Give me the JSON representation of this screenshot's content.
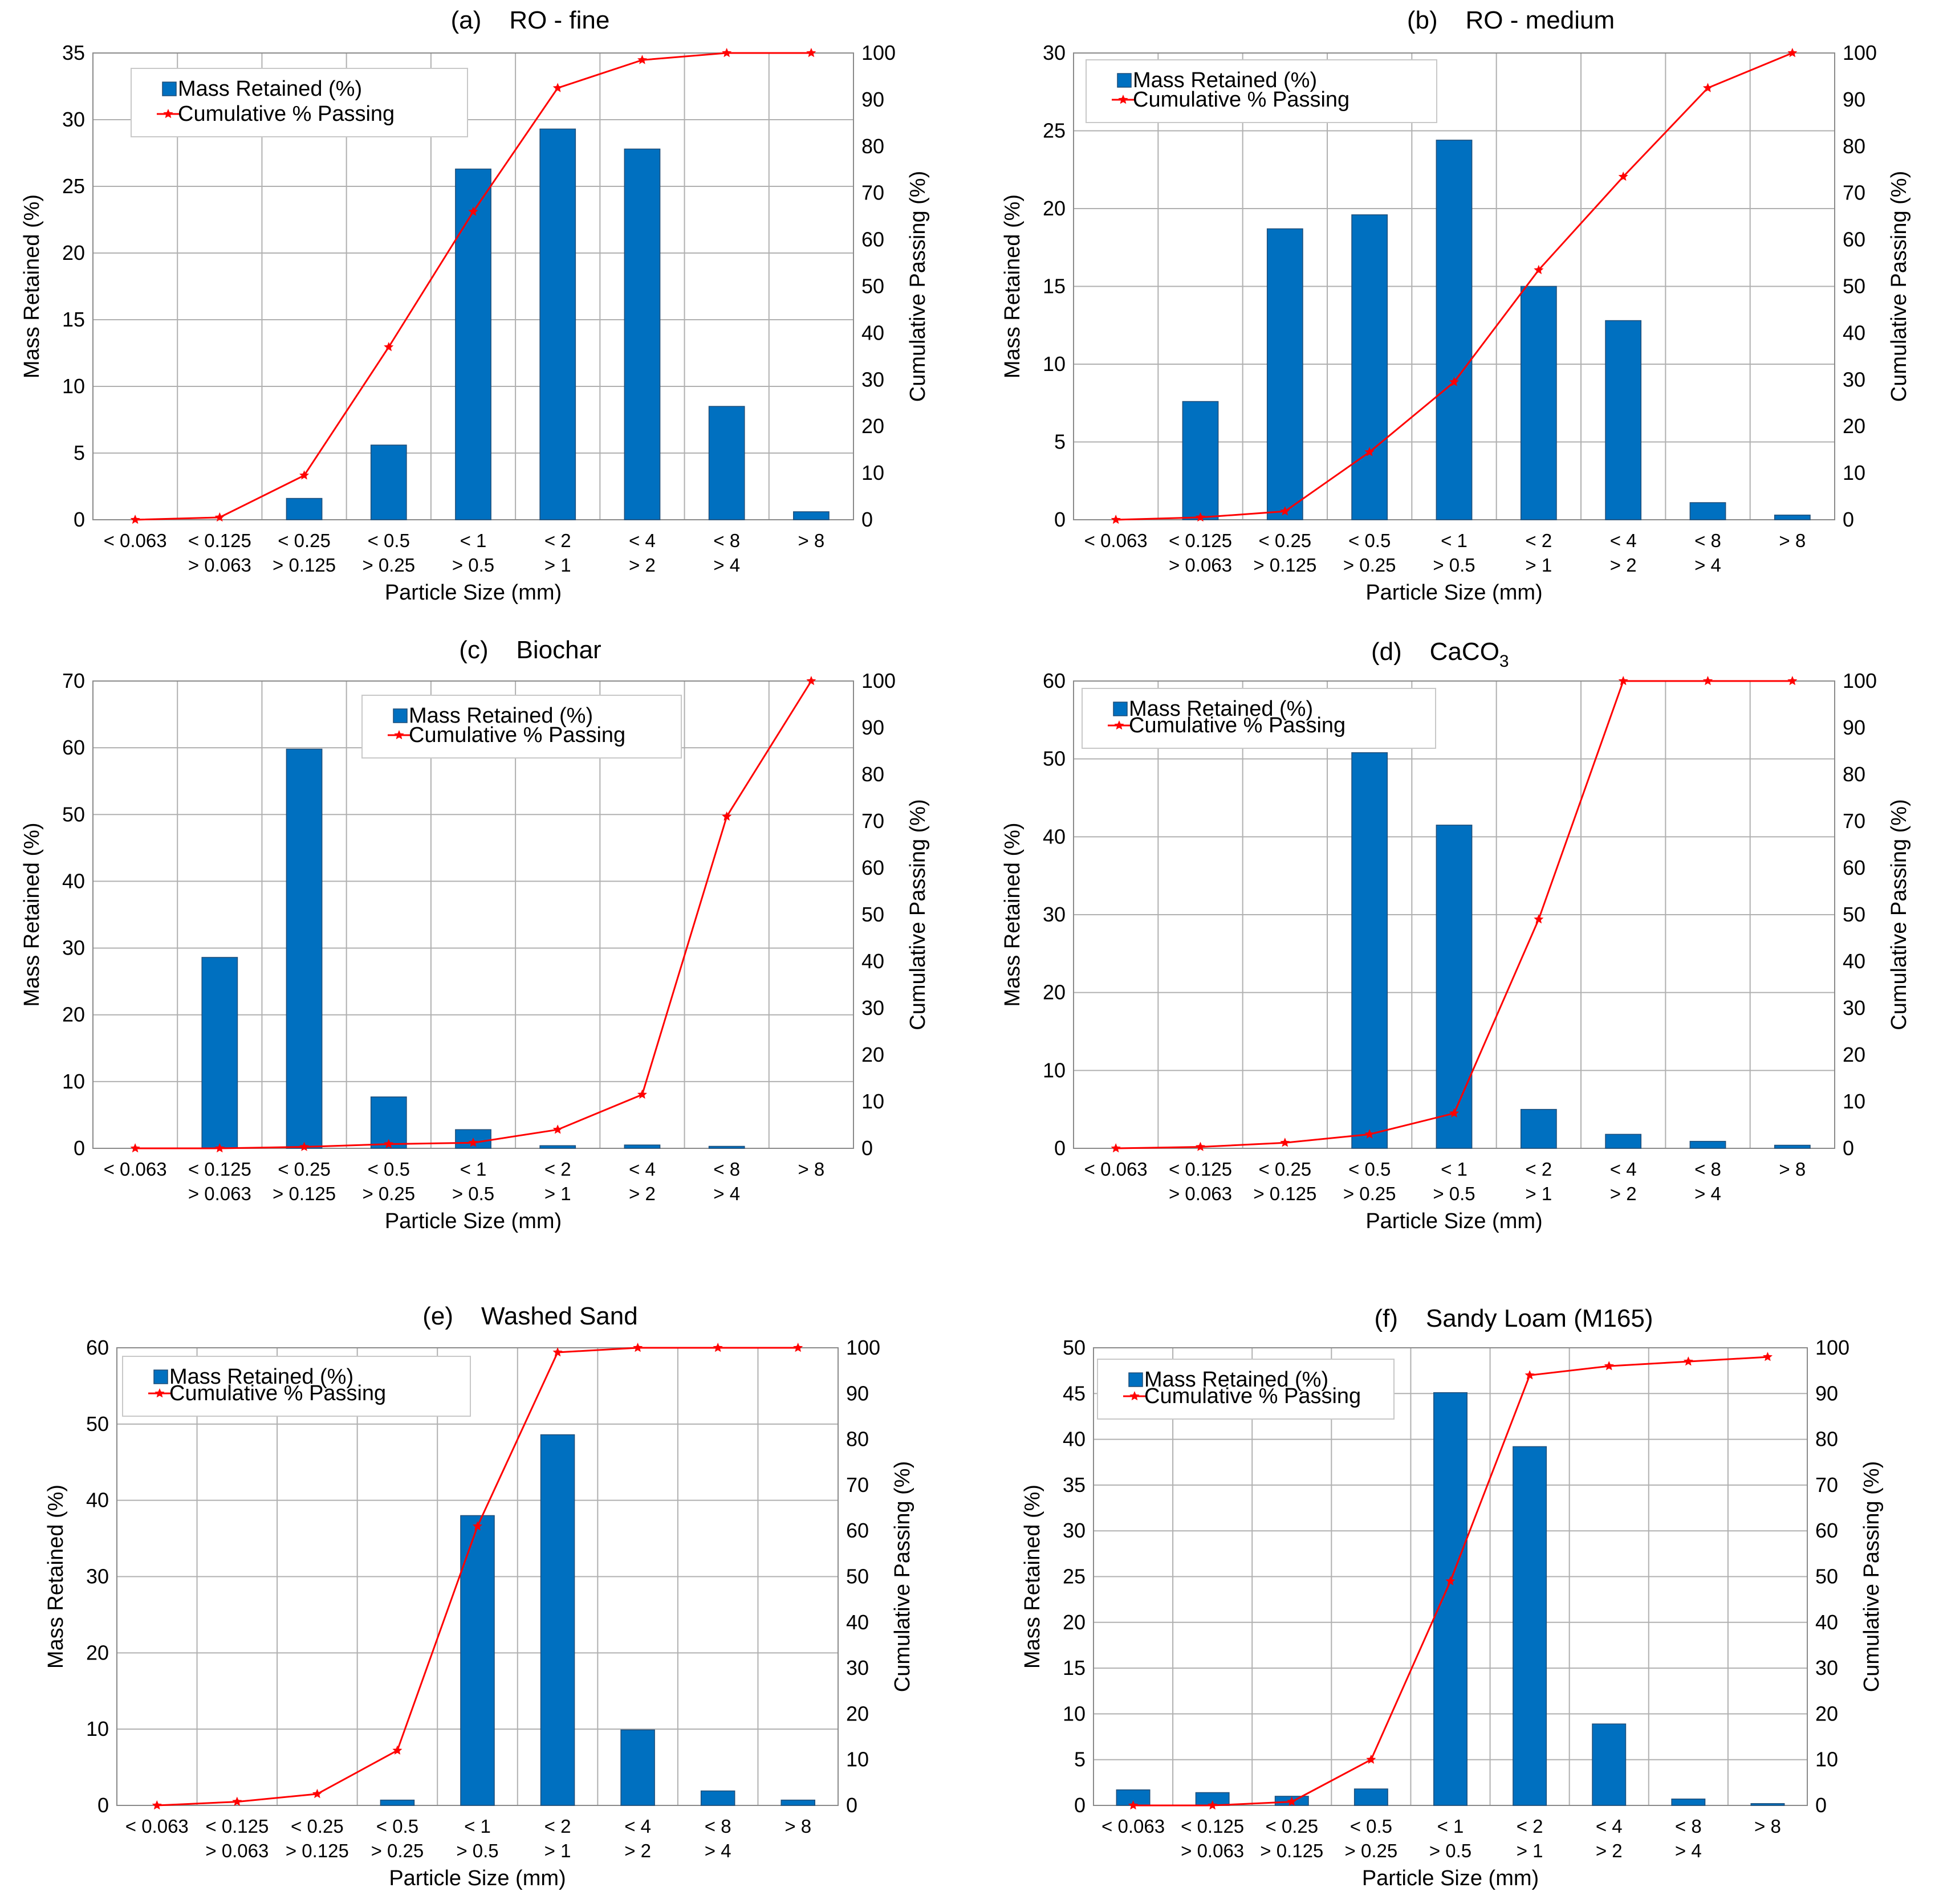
{
  "colors": {
    "bar": "#0070C0",
    "bar_edge": "#1F4E79",
    "line": "#FF0000",
    "grid": "#B0B0B0",
    "legend_border": "#C8C8C8"
  },
  "chart_data": [
    {
      "id": "a",
      "type": "bar+line",
      "title": "(a)    RO - fine",
      "xlabel": "Particle Size (mm)",
      "ylabel": "Mass Retained (%)",
      "y2label": "Cumulative Passing (%)",
      "ylim": [
        0,
        35
      ],
      "ystep": 5,
      "y2lim": [
        0,
        100
      ],
      "y2step": 10,
      "legend": [
        "Mass Retained (%)",
        "Cumulative % Passing"
      ],
      "categories": [
        [
          "< 0.063"
        ],
        [
          "< 0.125",
          "> 0.063"
        ],
        [
          "< 0.25",
          "> 0.125"
        ],
        [
          "< 0.5",
          "> 0.25"
        ],
        [
          "< 1",
          "> 0.5"
        ],
        [
          "< 2",
          "> 1"
        ],
        [
          "< 4",
          "> 2"
        ],
        [
          "< 8",
          "> 4"
        ],
        [
          "> 8"
        ]
      ],
      "series": [
        {
          "name": "Mass Retained (%)",
          "type": "bar",
          "values": [
            0,
            0,
            1.6,
            5.6,
            26.3,
            29.3,
            27.8,
            8.5,
            0.6
          ]
        },
        {
          "name": "Cumulative % Passing",
          "type": "line",
          "values": [
            0,
            0.5,
            9.5,
            37,
            66,
            92.5,
            98.5,
            100,
            100
          ]
        }
      ]
    },
    {
      "id": "b",
      "type": "bar+line",
      "title": "(b)    RO - medium",
      "xlabel": "Particle Size (mm)",
      "ylabel": "Mass Retained (%)",
      "y2label": "Cumulative Passing (%)",
      "ylim": [
        0,
        30
      ],
      "ystep": 5,
      "y2lim": [
        0,
        100
      ],
      "y2step": 10,
      "legend": [
        "Mass Retained (%)",
        "Cumulative % Passing"
      ],
      "categories": [
        [
          "< 0.063"
        ],
        [
          "< 0.125",
          "> 0.063"
        ],
        [
          "< 0.25",
          "> 0.125"
        ],
        [
          "< 0.5",
          "> 0.25"
        ],
        [
          "< 1",
          "> 0.5"
        ],
        [
          "< 2",
          "> 1"
        ],
        [
          "< 4",
          "> 2"
        ],
        [
          "< 8",
          "> 4"
        ],
        [
          "> 8"
        ]
      ],
      "series": [
        {
          "name": "Mass Retained (%)",
          "type": "bar",
          "values": [
            0,
            7.6,
            18.7,
            19.6,
            24.4,
            15.0,
            12.8,
            1.1,
            0.3
          ]
        },
        {
          "name": "Cumulative % Passing",
          "type": "line",
          "values": [
            0,
            0.5,
            1.8,
            14.5,
            29.5,
            53.5,
            73.5,
            92.5,
            100
          ]
        }
      ]
    },
    {
      "id": "c",
      "type": "bar+line",
      "title": "(c)    Biochar",
      "xlabel": "Particle Size (mm)",
      "ylabel": "Mass Retained (%)",
      "y2label": "Cumulative Passing (%)",
      "ylim": [
        0,
        70
      ],
      "ystep": 10,
      "y2lim": [
        0,
        100
      ],
      "y2step": 10,
      "legend": [
        "Mass Retained (%)",
        "Cumulative % Passing"
      ],
      "categories": [
        [
          "< 0.063"
        ],
        [
          "< 0.125",
          "> 0.063"
        ],
        [
          "< 0.25",
          "> 0.125"
        ],
        [
          "< 0.5",
          "> 0.25"
        ],
        [
          "< 1",
          "> 0.5"
        ],
        [
          "< 2",
          "> 1"
        ],
        [
          "< 4",
          "> 2"
        ],
        [
          "< 8",
          "> 4"
        ],
        [
          "> 8"
        ]
      ],
      "series": [
        {
          "name": "Mass Retained (%)",
          "type": "bar",
          "values": [
            0,
            28.6,
            59.8,
            7.7,
            2.8,
            0.4,
            0.5,
            0.3,
            0
          ]
        },
        {
          "name": "Cumulative % Passing",
          "type": "line",
          "values": [
            0,
            0,
            0.3,
            0.9,
            1.2,
            4,
            11.5,
            71,
            100
          ]
        }
      ]
    },
    {
      "id": "d",
      "type": "bar+line",
      "title": "(d)    CaCO",
      "title_sub": "3",
      "xlabel": "Particle Size (mm)",
      "ylabel": "Mass Retained (%)",
      "y2label": "Cumulative Passing (%)",
      "ylim": [
        0,
        60
      ],
      "ystep": 10,
      "y2lim": [
        0,
        100
      ],
      "y2step": 10,
      "legend": [
        "Mass Retained (%)",
        "Cumulative % Passing"
      ],
      "categories": [
        [
          "< 0.063"
        ],
        [
          "< 0.125",
          "> 0.063"
        ],
        [
          "< 0.25",
          "> 0.125"
        ],
        [
          "< 0.5",
          "> 0.25"
        ],
        [
          "< 1",
          "> 0.5"
        ],
        [
          "< 2",
          "> 1"
        ],
        [
          "< 4",
          "> 2"
        ],
        [
          "< 8",
          "> 4"
        ],
        [
          "> 8"
        ]
      ],
      "series": [
        {
          "name": "Mass Retained (%)",
          "type": "bar",
          "values": [
            0,
            0,
            0,
            50.8,
            41.5,
            5.0,
            1.8,
            0.9,
            0.4
          ]
        },
        {
          "name": "Cumulative % Passing",
          "type": "line",
          "values": [
            0,
            0.3,
            1.2,
            3,
            7.5,
            49,
            100,
            100,
            100
          ]
        }
      ]
    },
    {
      "id": "e",
      "type": "bar+line",
      "title": "(e)    Washed Sand",
      "xlabel": "Particle Size (mm)",
      "ylabel": "Mass Retained (%)",
      "y2label": "Cumulative Passing (%)",
      "ylim": [
        0,
        60
      ],
      "ystep": 10,
      "y2lim": [
        0,
        100
      ],
      "y2step": 10,
      "legend": [
        "Mass Retained (%)",
        "Cumulative % Passing"
      ],
      "categories": [
        [
          "< 0.063"
        ],
        [
          "< 0.125",
          "> 0.063"
        ],
        [
          "< 0.25",
          "> 0.125"
        ],
        [
          "< 0.5",
          "> 0.25"
        ],
        [
          "< 1",
          "> 0.5"
        ],
        [
          "< 2",
          "> 1"
        ],
        [
          "< 4",
          "> 2"
        ],
        [
          "< 8",
          "> 4"
        ],
        [
          "> 8"
        ]
      ],
      "series": [
        {
          "name": "Mass Retained (%)",
          "type": "bar",
          "values": [
            0,
            0,
            0,
            0.7,
            38.0,
            48.6,
            9.9,
            1.9,
            0.7
          ]
        },
        {
          "name": "Cumulative % Passing",
          "type": "line",
          "values": [
            0,
            0.8,
            2.5,
            12,
            61,
            99,
            100,
            100,
            100
          ]
        }
      ]
    },
    {
      "id": "f",
      "type": "bar+line",
      "title": "(f)    Sandy Loam (M165)",
      "xlabel": "Particle Size (mm)",
      "ylabel": "Mass Retained (%)",
      "y2label": "Cumulative Passing (%)",
      "ylim": [
        0,
        50
      ],
      "ystep": 5,
      "y2lim": [
        0,
        100
      ],
      "y2step": 10,
      "legend": [
        "Mass Retained (%)",
        "Cumulative % Passing"
      ],
      "categories": [
        [
          "< 0.063"
        ],
        [
          "< 0.125",
          "> 0.063"
        ],
        [
          "< 0.25",
          "> 0.125"
        ],
        [
          "< 0.5",
          "> 0.25"
        ],
        [
          "< 1",
          "> 0.5"
        ],
        [
          "< 2",
          "> 1"
        ],
        [
          "< 4",
          "> 2"
        ],
        [
          "< 8",
          "> 4"
        ],
        [
          "> 8"
        ]
      ],
      "series": [
        {
          "name": "Mass Retained (%)",
          "type": "bar",
          "values": [
            1.7,
            1.4,
            1.0,
            1.8,
            45.1,
            39.2,
            8.9,
            0.7,
            0.2
          ]
        },
        {
          "name": "Cumulative % Passing",
          "type": "line",
          "values": [
            0,
            0,
            0.8,
            10,
            49,
            94,
            96,
            97,
            98
          ]
        }
      ]
    }
  ]
}
